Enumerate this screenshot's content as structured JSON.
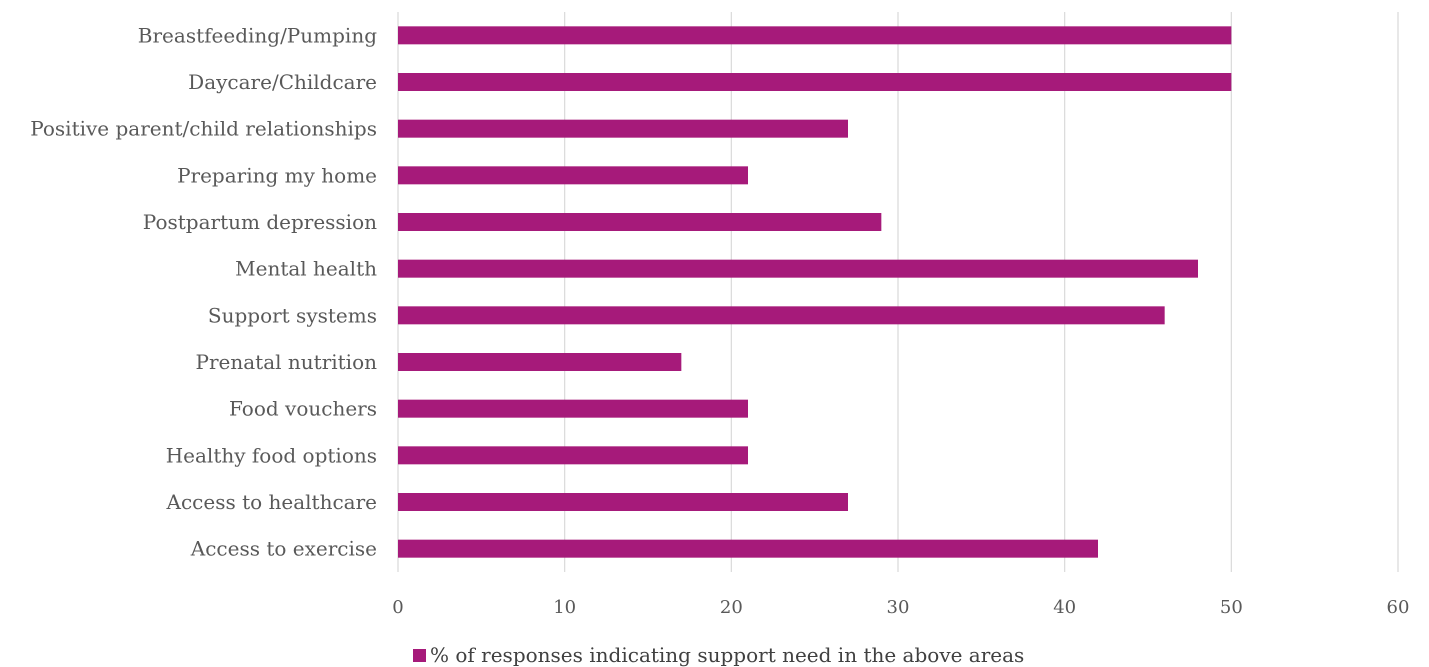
{
  "chart_data": {
    "type": "bar",
    "orientation": "horizontal",
    "categories": [
      "Breastfeeding/Pumping",
      "Daycare/Childcare",
      "Positive parent/child relationships",
      "Preparing my home",
      "Postpartum depression",
      "Mental health",
      "Support systems",
      "Prenatal nutrition",
      "Food vouchers",
      "Healthy food options",
      "Access to healthcare",
      "Access to exercise"
    ],
    "series": [
      {
        "name": "% of responses indicating support need in the above areas",
        "values": [
          50,
          50,
          27,
          21,
          29,
          48,
          46,
          17,
          21,
          21,
          27,
          42
        ],
        "color": "#a61a7a"
      }
    ],
    "xlim": [
      0,
      60
    ],
    "xticks": [
      "0",
      "10",
      "20",
      "30",
      "40",
      "50",
      "60"
    ],
    "grid": true,
    "legend_position": "bottom"
  }
}
